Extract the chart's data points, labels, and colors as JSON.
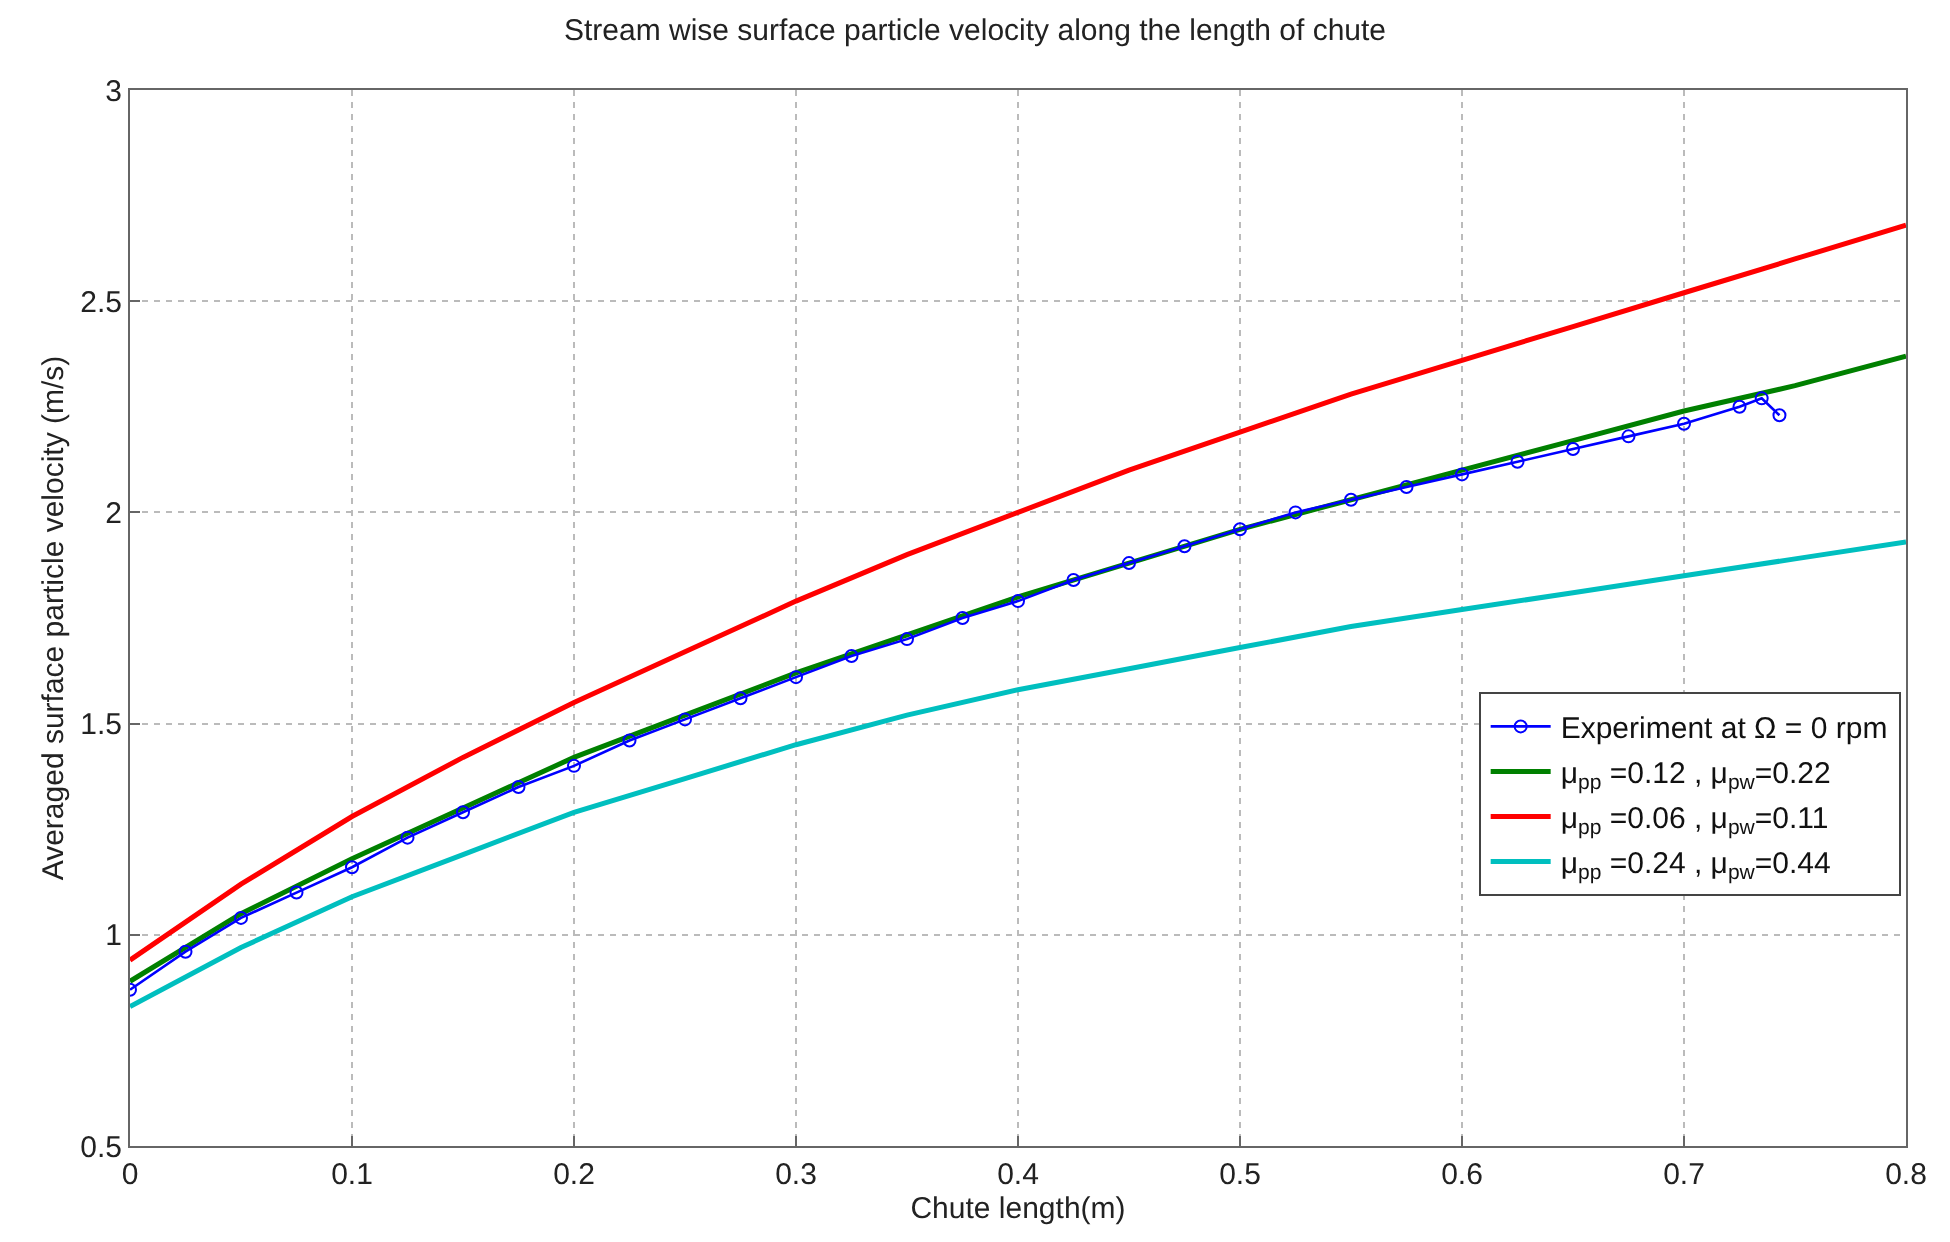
{
  "chart_data": {
    "type": "line",
    "title": "Stream wise surface particle velocity along the length of chute",
    "xlabel": "Chute length(m)",
    "ylabel": "Averaged surface particle velocity (m/s)",
    "xlim": [
      0,
      0.8
    ],
    "xticks": [
      0,
      0.1,
      0.2,
      0.3,
      0.4,
      0.5,
      0.6,
      0.7,
      0.8
    ],
    "ylim": [
      0.5,
      3
    ],
    "yticks": [
      0.5,
      1,
      1.5,
      2,
      2.5,
      3
    ],
    "grid": true,
    "legend": "right",
    "line_style": "solid",
    "series": [
      {
        "name": "Experiment at Ω = 0 rpm",
        "color": "#0000ff",
        "marker": "circle",
        "x": [
          0,
          0.025,
          0.05,
          0.075,
          0.1,
          0.125,
          0.15,
          0.175,
          0.2,
          0.225,
          0.25,
          0.275,
          0.3,
          0.325,
          0.35,
          0.375,
          0.4,
          0.425,
          0.45,
          0.475,
          0.5,
          0.525,
          0.55,
          0.575,
          0.6,
          0.625,
          0.65,
          0.675,
          0.7,
          0.725,
          0.735,
          0.743
        ],
        "values": [
          0.87,
          0.96,
          1.04,
          1.1,
          1.16,
          1.23,
          1.29,
          1.35,
          1.4,
          1.46,
          1.51,
          1.56,
          1.61,
          1.66,
          1.7,
          1.75,
          1.79,
          1.84,
          1.88,
          1.92,
          1.96,
          2.0,
          2.03,
          2.06,
          2.09,
          2.12,
          2.15,
          2.18,
          2.21,
          2.25,
          2.27,
          2.23
        ]
      },
      {
        "name": "μ$_{pp}$ =0.12 , μ$_{pw}$=0.22",
        "color": "#008000",
        "marker": "none",
        "x": [
          0,
          0.05,
          0.1,
          0.15,
          0.2,
          0.25,
          0.3,
          0.35,
          0.4,
          0.45,
          0.5,
          0.55,
          0.6,
          0.65,
          0.7,
          0.75,
          0.8
        ],
        "values": [
          0.89,
          1.05,
          1.18,
          1.3,
          1.42,
          1.52,
          1.62,
          1.71,
          1.8,
          1.88,
          1.96,
          2.03,
          2.1,
          2.17,
          2.24,
          2.3,
          2.37
        ]
      },
      {
        "name": "μ$_{pp}$ =0.06 , μ$_{pw}$=0.11",
        "color": "#ff0000",
        "marker": "none",
        "x": [
          0,
          0.05,
          0.1,
          0.15,
          0.2,
          0.25,
          0.3,
          0.35,
          0.4,
          0.45,
          0.5,
          0.55,
          0.6,
          0.65,
          0.7,
          0.75,
          0.8
        ],
        "values": [
          0.94,
          1.12,
          1.28,
          1.42,
          1.55,
          1.67,
          1.79,
          1.9,
          2.0,
          2.1,
          2.19,
          2.28,
          2.36,
          2.44,
          2.52,
          2.6,
          2.68
        ]
      },
      {
        "name": "μ$_{pp}$ =0.24 , μ$_{pw}$=0.44",
        "color": "#00bfbf",
        "marker": "none",
        "x": [
          0,
          0.05,
          0.1,
          0.15,
          0.2,
          0.25,
          0.3,
          0.35,
          0.4,
          0.45,
          0.5,
          0.55,
          0.6,
          0.65,
          0.7,
          0.75,
          0.8
        ],
        "values": [
          0.83,
          0.97,
          1.09,
          1.19,
          1.29,
          1.37,
          1.45,
          1.52,
          1.58,
          1.63,
          1.68,
          1.73,
          1.77,
          1.81,
          1.85,
          1.89,
          1.93
        ]
      }
    ]
  }
}
